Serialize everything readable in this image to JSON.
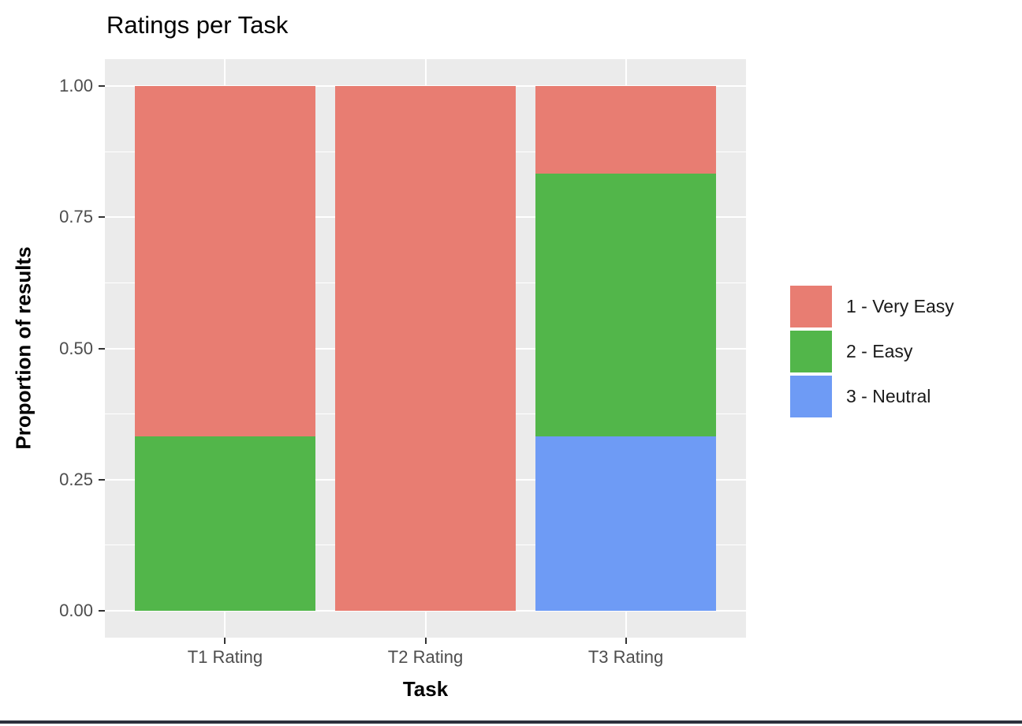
{
  "figure": {
    "title": "Ratings per Task",
    "legend": [
      {
        "label": "1 - Very Easy",
        "color": "#E87D72"
      },
      {
        "label": "2 - Easy",
        "color": "#52B64A"
      },
      {
        "label": "3 - Neutral",
        "color": "#6E9BF5"
      }
    ]
  },
  "chart_data": {
    "type": "bar",
    "stacked": true,
    "title": "Ratings per Task",
    "xlabel": "Task",
    "ylabel": "Proportion of results",
    "categories": [
      "T1 Rating",
      "T2 Rating",
      "T3 Rating"
    ],
    "series": [
      {
        "name": "1 - Very Easy",
        "color": "#E87D72",
        "values": [
          0.667,
          1.0,
          0.167
        ]
      },
      {
        "name": "2 - Easy",
        "color": "#52B64A",
        "values": [
          0.333,
          0.0,
          0.5
        ]
      },
      {
        "name": "3 - Neutral",
        "color": "#6E9BF5",
        "values": [
          0.0,
          0.0,
          0.333
        ]
      }
    ],
    "ylim": [
      0,
      1
    ],
    "yticks": [
      0,
      0.25,
      0.5,
      0.75,
      1.0
    ],
    "ytick_labels": [
      "0.00",
      "0.25",
      "0.50",
      "0.75",
      "1.00"
    ],
    "y_minor_gridlines": [
      0.125,
      0.375,
      0.625,
      0.875
    ],
    "grid": true,
    "legend_position": "right",
    "panel_bg": "#EBEBEB",
    "grid_color": "#FFFFFF"
  }
}
